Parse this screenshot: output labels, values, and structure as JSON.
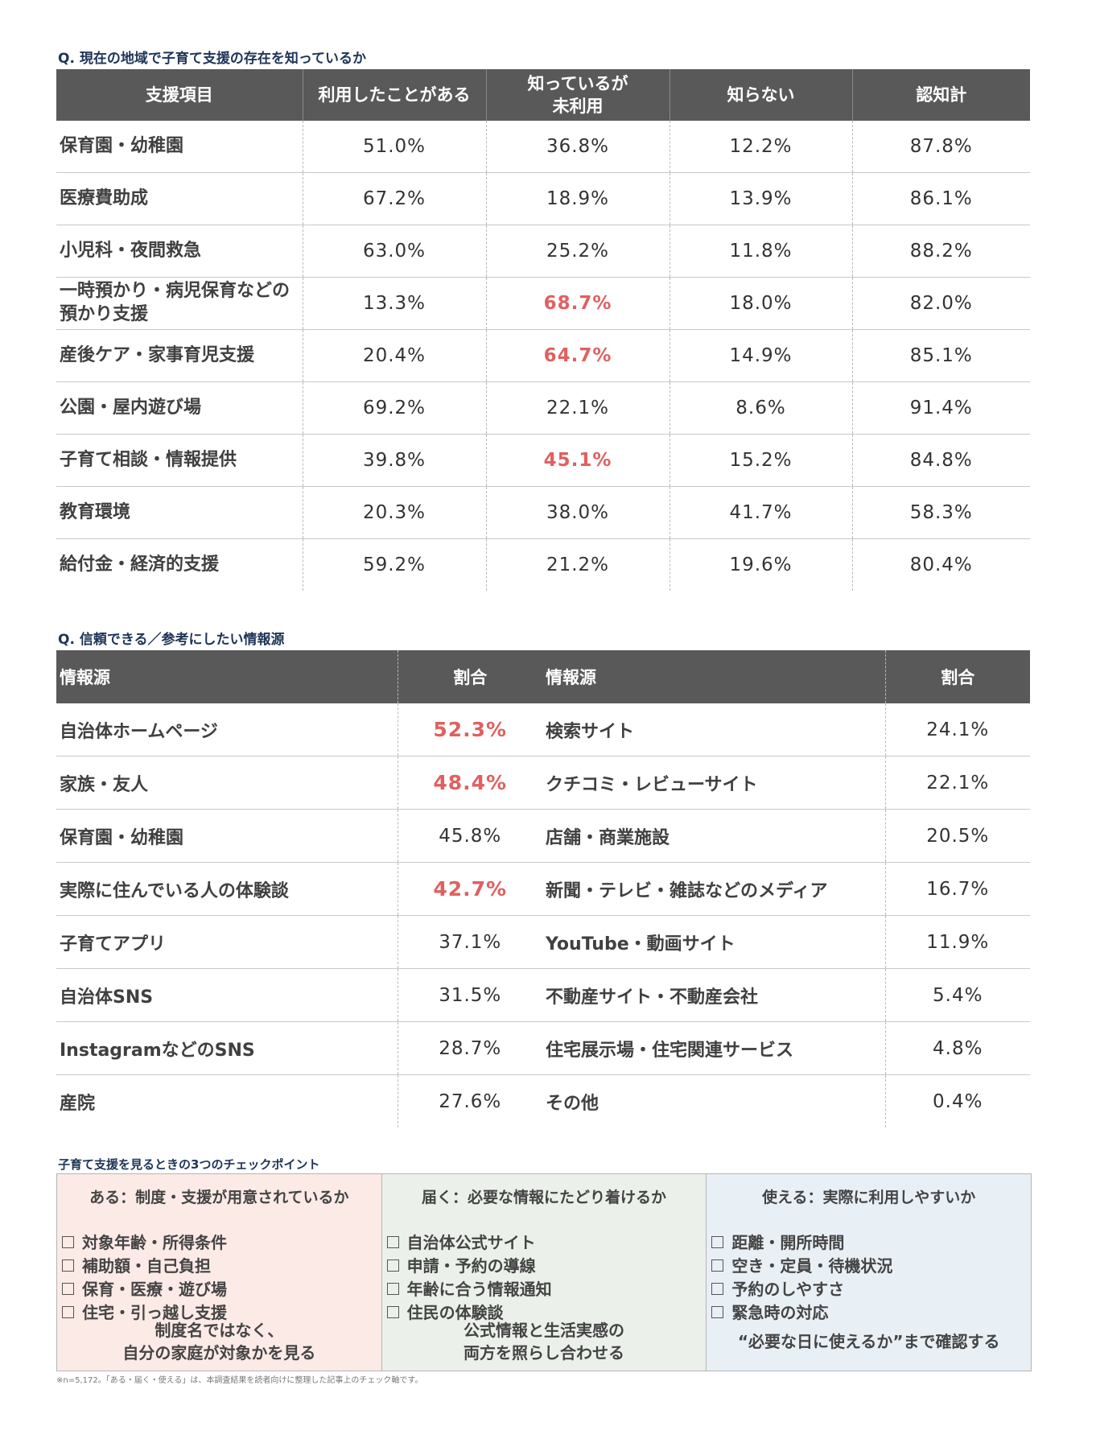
{
  "section1": {
    "question": "Q. 現在の地域で子育て支援の存在を知っているか",
    "headers": {
      "item": "支援項目",
      "used": "利用したことがある",
      "known_line1": "知っているが",
      "known_line2": "未利用",
      "unknown": "知らない",
      "total": "認知計"
    },
    "rows": [
      {
        "name": "保育園・幼稚園",
        "used": "51.0%",
        "known": "36.8%",
        "unknown": "12.2%",
        "total": "87.8%"
      },
      {
        "name": "医療費助成",
        "used": "67.2%",
        "known": "18.9%",
        "unknown": "13.9%",
        "total": "86.1%"
      },
      {
        "name": "小児科・夜間救急",
        "used": "63.0%",
        "known": "25.2%",
        "unknown": "11.8%",
        "total": "88.2%"
      },
      {
        "name_line1": "一時預かり・病児保育などの",
        "name_line2": "預かり支援",
        "used": "13.3%",
        "known": "68.7%",
        "unknown": "18.0%",
        "total": "82.0%"
      },
      {
        "name": "産後ケア・家事育児支援",
        "used": "20.4%",
        "known": "64.7%",
        "unknown": "14.9%",
        "total": "85.1%"
      },
      {
        "name": "公園・屋内遊び場",
        "used": "69.2%",
        "known": "22.1%",
        "unknown": "8.6%",
        "total": "91.4%"
      },
      {
        "name": "子育て相談・情報提供",
        "used": "39.8%",
        "known": "45.1%",
        "unknown": "15.2%",
        "total": "84.8%"
      },
      {
        "name": "教育環境",
        "used": "20.3%",
        "known": "38.0%",
        "unknown": "41.7%",
        "total": "58.3%"
      },
      {
        "name": "給付金・経済的支援",
        "used": "59.2%",
        "known": "21.2%",
        "unknown": "19.6%",
        "total": "80.4%"
      }
    ],
    "highlight_color": "#e06060"
  },
  "section2": {
    "question": "Q. 信頼できる／参考にしたい情報源",
    "headers": {
      "source": "情報源",
      "ratio": "割合"
    },
    "left": [
      {
        "name": "自治体ホームページ",
        "pct": "52.3%"
      },
      {
        "name": "家族・友人",
        "pct": "48.4%"
      },
      {
        "name": "保育園・幼稚園",
        "pct": "45.8%"
      },
      {
        "name": "実際に住んでいる人の体験談",
        "pct": "42.7%"
      },
      {
        "name": "子育てアプリ",
        "pct": "37.1%"
      },
      {
        "name": "自治体SNS",
        "pct": "31.5%"
      },
      {
        "name": "InstagramなどのSNS",
        "pct": "28.7%"
      },
      {
        "name": "産院",
        "pct": "27.6%"
      }
    ],
    "right": [
      {
        "name": "検索サイト",
        "pct": "24.1%"
      },
      {
        "name": "クチコミ・レビューサイト",
        "pct": "22.1%"
      },
      {
        "name": "店舗・商業施設",
        "pct": "20.5%"
      },
      {
        "name": "新聞・テレビ・雑誌などのメディア",
        "pct": "16.7%"
      },
      {
        "name": "YouTube・動画サイト",
        "pct": "11.9%"
      },
      {
        "name": "不動産サイト・不動産会社",
        "pct": "5.4%"
      },
      {
        "name": "住宅展示場・住宅関連サービス",
        "pct": "4.8%"
      },
      {
        "name": "その他",
        "pct": "0.4%"
      }
    ]
  },
  "section3": {
    "title": "子育て支援を見るときの3つのチェックポイント",
    "columns": [
      {
        "head": "ある：制度・支援が用意されているか",
        "items": [
          "対象年齢・所得条件",
          "補助額・自己負担",
          "保育・医療・遊び場",
          "住宅・引っ越し支援"
        ],
        "foot1": "制度名ではなく、",
        "foot2": "自分の家庭が対象かを見る",
        "bg": "#fbeae6"
      },
      {
        "head": "届く：必要な情報にたどり着けるか",
        "items": [
          "自治体公式サイト",
          "申請・予約の導線",
          "年齢に合う情報通知",
          "住民の体験談"
        ],
        "foot1": "公式情報と生活実感の",
        "foot2": "両方を照らし合わせる",
        "bg": "#ebf1ea"
      },
      {
        "head": "使える：実際に利用しやすいか",
        "items": [
          "距離・開所時間",
          "空き・定員・待機状況",
          "予約のしやすさ",
          "緊急時の対応"
        ],
        "foot1": "“必要な日に使えるか”まで確認する",
        "bg": "#e8f0f6"
      }
    ],
    "footnote": "※n=5,172。「ある・届く・使える」は、本調査結果を読者向けに整理した記事上のチェック軸です。"
  }
}
